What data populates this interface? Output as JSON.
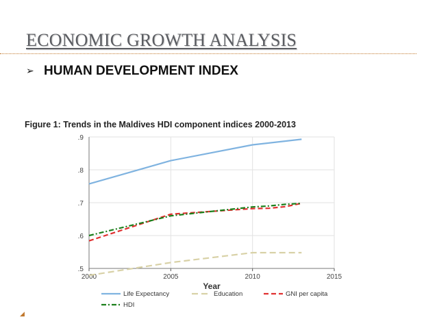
{
  "slide": {
    "title": "ECONOMIC GROWTH ANALYSIS",
    "bullet_icon": "arrow-bullet",
    "bullet_text": "HUMAN DEVELOPMENT INDEX"
  },
  "chart_data": {
    "type": "line",
    "title": "Figure 1: Trends in the Maldives HDI component indices 2000-2013",
    "xlabel": "Year",
    "ylabel": "",
    "xlim": [
      2000,
      2015
    ],
    "ylim": [
      0.5,
      0.9
    ],
    "x_ticks": [
      "2000",
      "2005",
      "2010",
      "2015"
    ],
    "y_ticks": [
      ".5",
      ".6",
      ".7",
      ".8",
      ".9"
    ],
    "grid": true,
    "legend_position": "bottom",
    "series": [
      {
        "name": "Life Expectancy",
        "color": "#7fb3e0",
        "dash": "solid",
        "x": [
          2000,
          2005,
          2010,
          2013
        ],
        "values": [
          0.757,
          0.828,
          0.876,
          0.893
        ]
      },
      {
        "name": "Education",
        "color": "#d8d1a6",
        "dash": "longdash",
        "x": [
          2000,
          2005,
          2010,
          2011,
          2012,
          2013
        ],
        "values": [
          0.479,
          0.518,
          0.548,
          0.548,
          0.548,
          0.548
        ]
      },
      {
        "name": "GNI per capita",
        "color": "#e03030",
        "dash": "dash",
        "x": [
          2000,
          2005,
          2010,
          2011,
          2012,
          2013
        ],
        "values": [
          0.584,
          0.665,
          0.682,
          0.683,
          0.688,
          0.698
        ]
      },
      {
        "name": "HDI",
        "color": "#1a7f1a",
        "dash": "dashdot",
        "x": [
          2000,
          2005,
          2010,
          2011,
          2012,
          2013
        ],
        "values": [
          0.6,
          0.66,
          0.687,
          0.69,
          0.695,
          0.698
        ]
      }
    ]
  }
}
